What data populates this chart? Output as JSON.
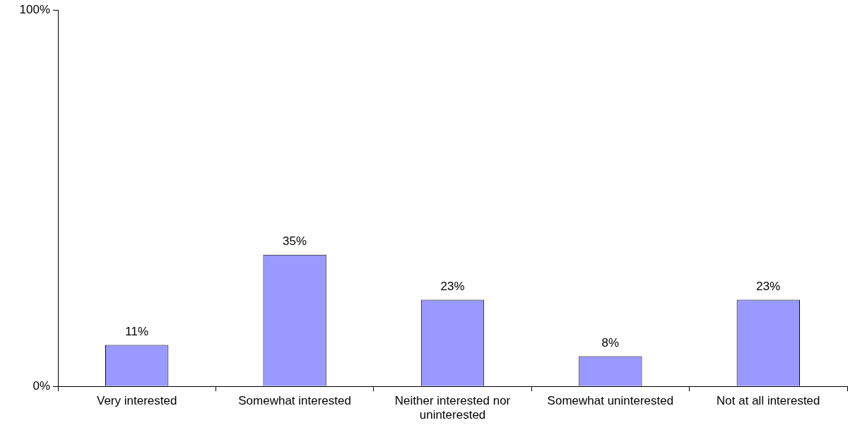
{
  "chart_data": {
    "type": "bar",
    "categories": [
      "Very interested",
      "Somewhat interested",
      "Neither interested nor uninterested",
      "Somewhat uninterested",
      "Not at all interested"
    ],
    "values": [
      11,
      35,
      23,
      8,
      23
    ],
    "value_labels": [
      "11%",
      "35%",
      "23%",
      "8%",
      "23%"
    ],
    "color": "#9999ff",
    "ylim": [
      0,
      100
    ],
    "yticks": [
      {
        "value": 0,
        "label": "0%"
      },
      {
        "value": 100,
        "label": "100%"
      }
    ],
    "grid": false,
    "legend": false
  }
}
